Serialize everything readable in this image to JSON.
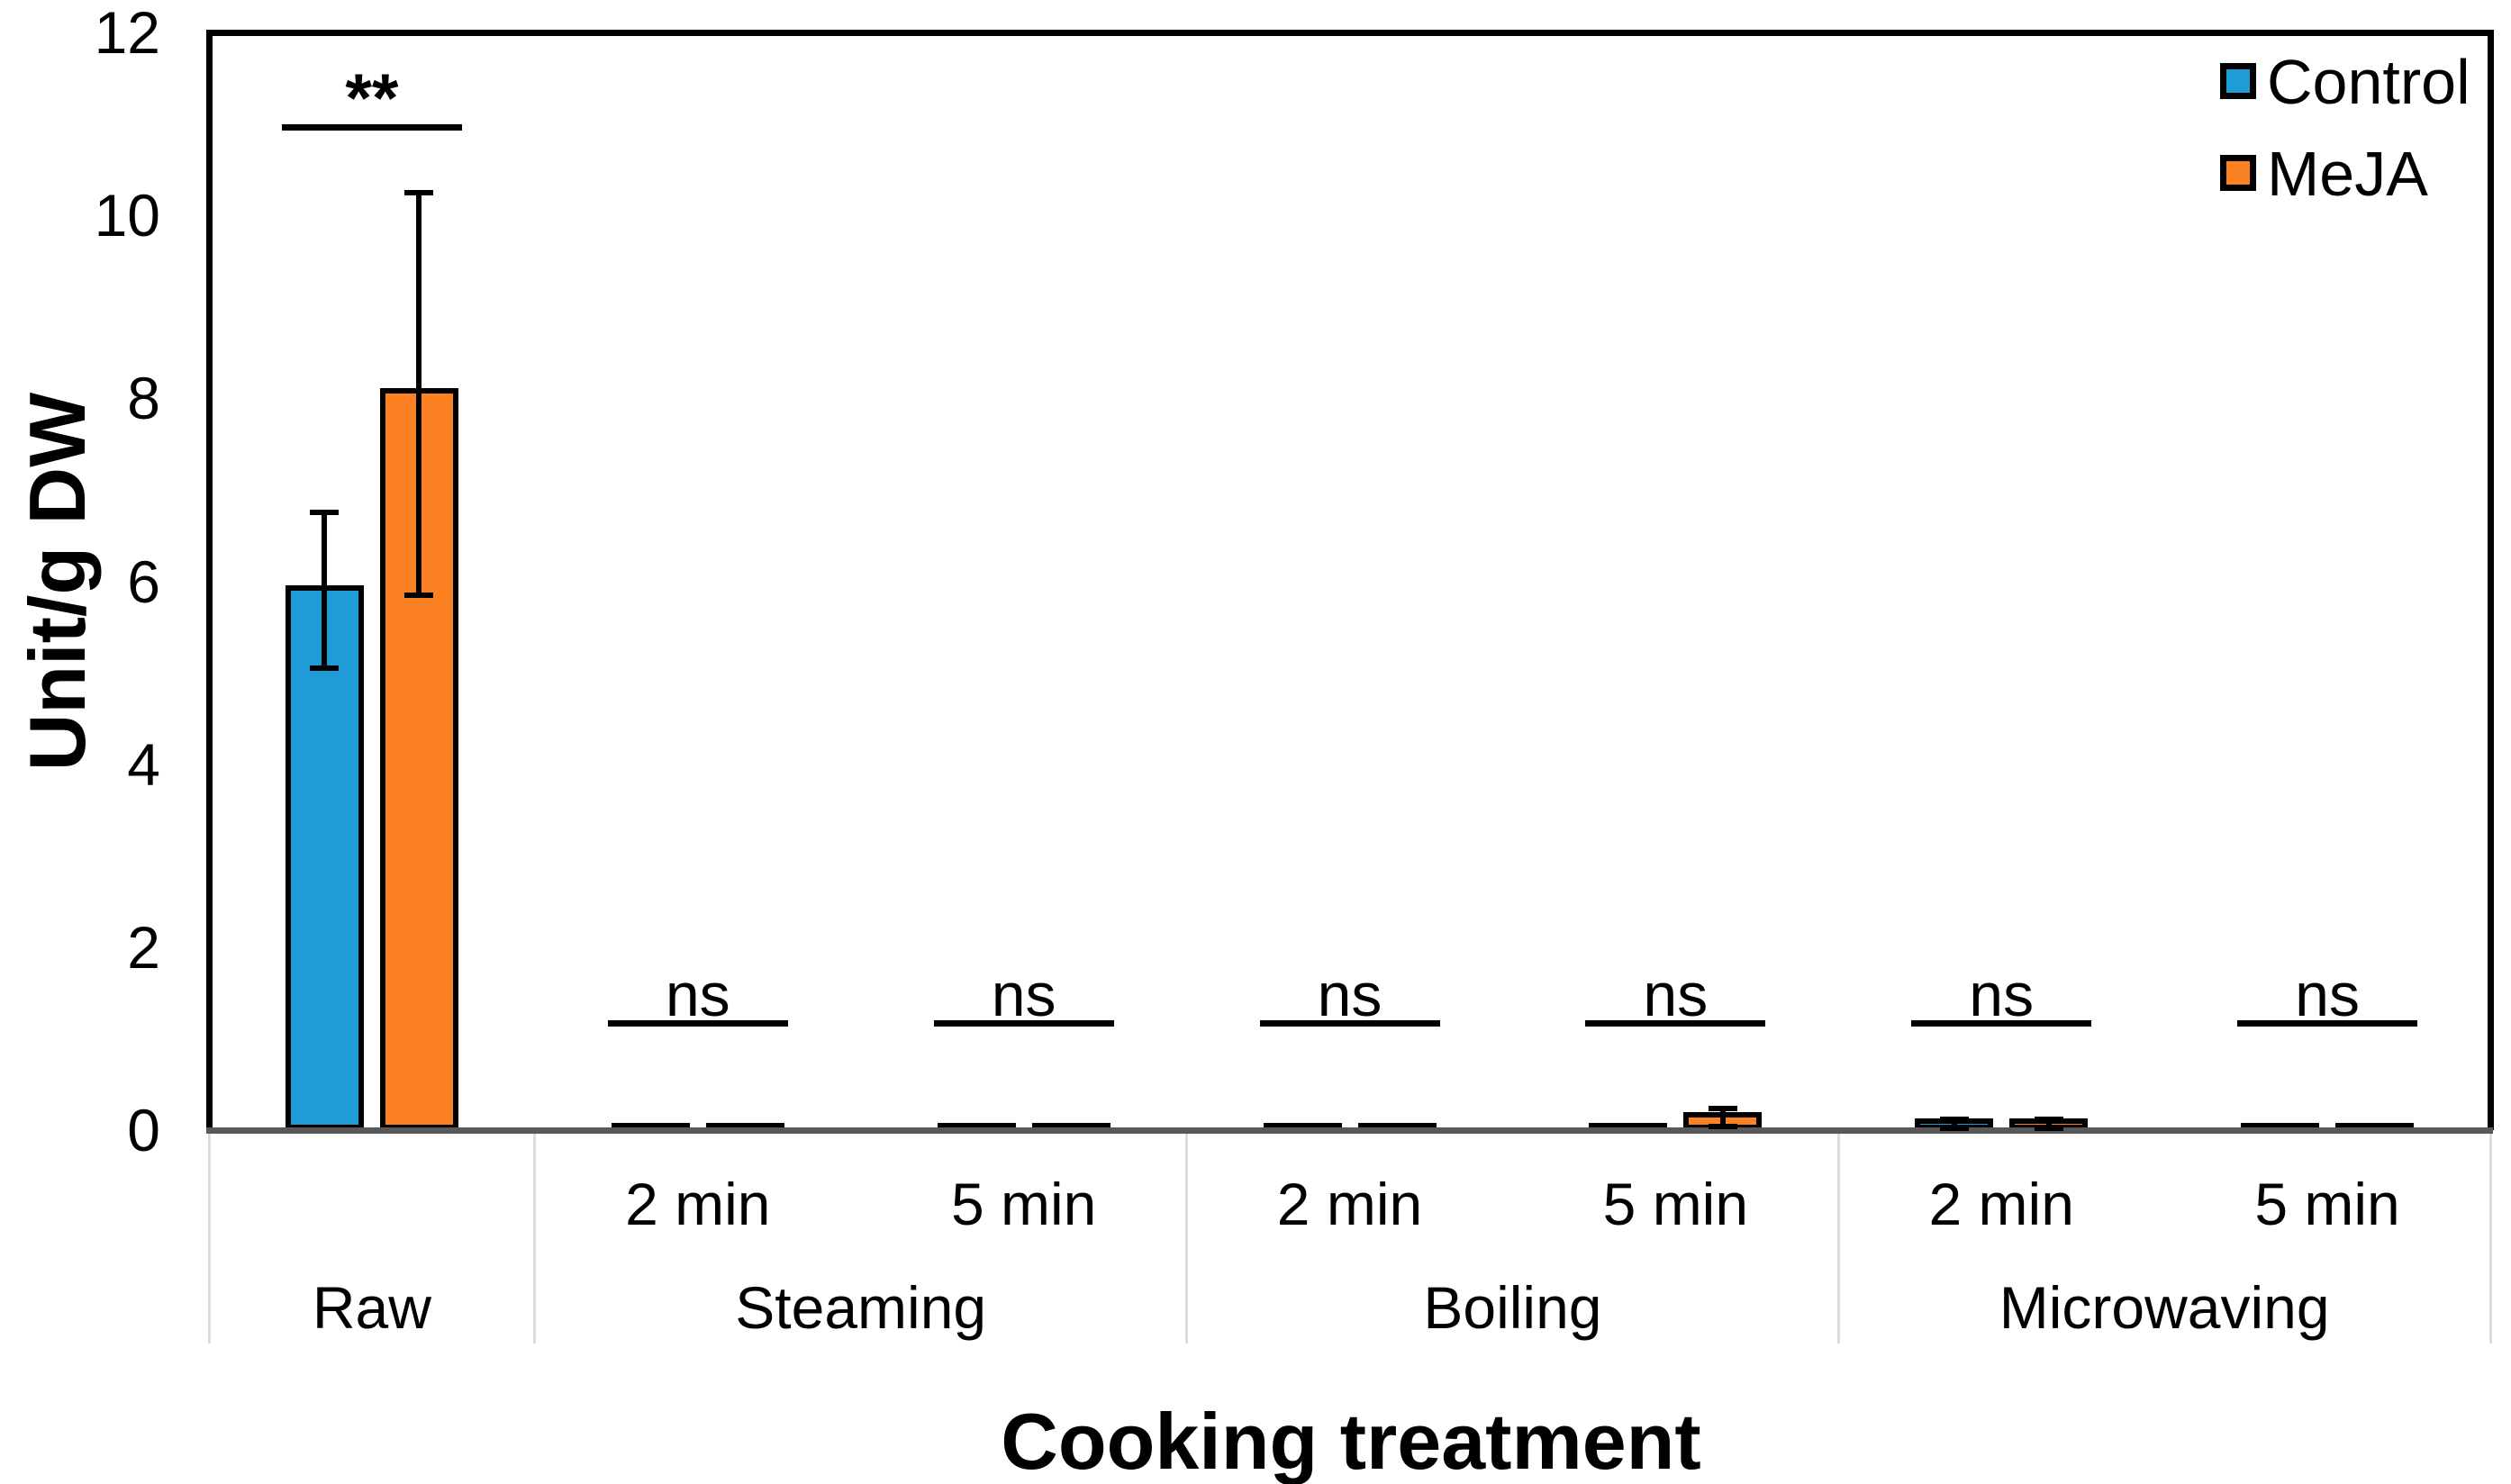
{
  "chart_data": {
    "type": "bar",
    "title": "",
    "xlabel": "Cooking treatment",
    "ylabel": "Unit/g DW",
    "ylim": [
      0,
      12
    ],
    "yticks": [
      0,
      2,
      4,
      6,
      8,
      10,
      12
    ],
    "grid": false,
    "legend": {
      "position": "top-right-inside",
      "entries": [
        {
          "label": "Control",
          "color": "#1E9CD8"
        },
        {
          "label": "MeJA",
          "color": "#FB8122"
        }
      ]
    },
    "groups": [
      {
        "label": "Raw",
        "slot_count": 1
      },
      {
        "label": "Steaming",
        "slot_count": 2
      },
      {
        "label": "Boiling",
        "slot_count": 2
      },
      {
        "label": "Microwaving",
        "slot_count": 2
      }
    ],
    "slot_labels": [
      "",
      "2 min",
      "5 min",
      "2 min",
      "5 min",
      "2 min",
      "5 min"
    ],
    "series": [
      {
        "name": "Control",
        "color": "#1E9CD8",
        "values": [
          5.9,
          0.02,
          0.02,
          0.02,
          0.02,
          0.07,
          0.02
        ],
        "errors": [
          0.85,
          0,
          0,
          0,
          0,
          0.05,
          0
        ]
      },
      {
        "name": "MeJA",
        "color": "#FB8122",
        "values": [
          8.05,
          0.02,
          0.02,
          0.02,
          0.14,
          0.07,
          0.02
        ],
        "errors": [
          2.2,
          0,
          0,
          0,
          0.1,
          0.05,
          0
        ]
      }
    ],
    "significance": [
      {
        "slot": 0,
        "label": "**",
        "line_value": 11.0
      },
      {
        "slot": 1,
        "label": "ns",
        "line_value": 1.2
      },
      {
        "slot": 2,
        "label": "ns",
        "line_value": 1.2
      },
      {
        "slot": 3,
        "label": "ns",
        "line_value": 1.2
      },
      {
        "slot": 4,
        "label": "ns",
        "line_value": 1.2
      },
      {
        "slot": 5,
        "label": "ns",
        "line_value": 1.2
      },
      {
        "slot": 6,
        "label": "ns",
        "line_value": 1.2
      }
    ],
    "colors": {
      "axis_line": "#595959",
      "bar_outline": "#000000",
      "separator": "#DCDCDC",
      "frame": "#000000",
      "text": "#000000"
    }
  }
}
